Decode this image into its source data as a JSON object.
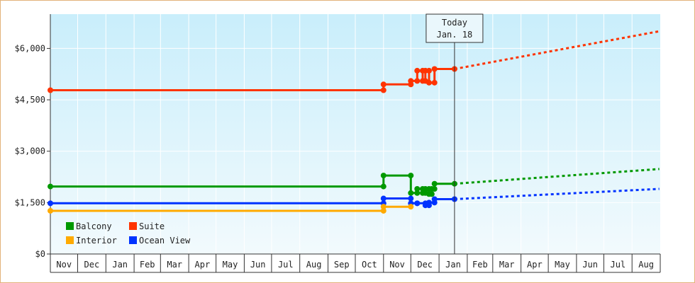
{
  "chart_data": {
    "type": "line",
    "ylim": [
      0,
      7000
    ],
    "y_ticks": [
      {
        "value": 0,
        "label": "$0"
      },
      {
        "value": 1500,
        "label": "$1,500"
      },
      {
        "value": 3000,
        "label": "$3,000"
      },
      {
        "value": 4500,
        "label": "$4,500"
      },
      {
        "value": 6000,
        "label": "$6,000"
      }
    ],
    "x_range": [
      "2023-11-01",
      "2025-08-31"
    ],
    "months": [
      {
        "label": "Nov",
        "date": "2023-11-01"
      },
      {
        "label": "Dec",
        "date": "2023-12-01"
      },
      {
        "label": "Jan",
        "date": "2024-01-01"
      },
      {
        "label": "Feb",
        "date": "2024-02-01"
      },
      {
        "label": "Mar",
        "date": "2024-03-01"
      },
      {
        "label": "Apr",
        "date": "2024-04-01"
      },
      {
        "label": "May",
        "date": "2024-05-01"
      },
      {
        "label": "Jun",
        "date": "2024-06-01"
      },
      {
        "label": "Jul",
        "date": "2024-07-01"
      },
      {
        "label": "Aug",
        "date": "2024-08-01"
      },
      {
        "label": "Sep",
        "date": "2024-09-01"
      },
      {
        "label": "Oct",
        "date": "2024-10-01"
      },
      {
        "label": "Nov",
        "date": "2024-11-01"
      },
      {
        "label": "Dec",
        "date": "2024-12-01"
      },
      {
        "label": "Jan",
        "date": "2025-01-01"
      },
      {
        "label": "Feb",
        "date": "2025-02-01"
      },
      {
        "label": "Mar",
        "date": "2025-03-01"
      },
      {
        "label": "Apr",
        "date": "2025-04-01"
      },
      {
        "label": "May",
        "date": "2025-05-01"
      },
      {
        "label": "Jun",
        "date": "2025-06-01"
      },
      {
        "label": "Jul",
        "date": "2025-07-01"
      },
      {
        "label": "Aug",
        "date": "2025-08-01"
      }
    ],
    "today": {
      "label": "Today",
      "date_label": "Jan. 18",
      "date": "2025-01-18"
    },
    "grid": true,
    "legend": "bottom-left",
    "colors": {
      "plot_top": "#c9eefb",
      "plot_bottom": "#f2fafd",
      "frame": "#e2b27a"
    },
    "series": [
      {
        "name": "Suite",
        "color": "#ff3300",
        "points": [
          {
            "date": "2023-11-01",
            "value": 4780
          },
          {
            "date": "2024-11-01",
            "value": 4780
          },
          {
            "date": "2024-11-01",
            "value": 4950
          },
          {
            "date": "2024-12-01",
            "value": 4950
          },
          {
            "date": "2024-12-01",
            "value": 5050
          },
          {
            "date": "2024-12-08",
            "value": 5050
          },
          {
            "date": "2024-12-08",
            "value": 5350
          },
          {
            "date": "2024-12-14",
            "value": 5350
          },
          {
            "date": "2024-12-14",
            "value": 5050
          },
          {
            "date": "2024-12-17",
            "value": 5050
          },
          {
            "date": "2024-12-17",
            "value": 5350
          },
          {
            "date": "2024-12-21",
            "value": 5350
          },
          {
            "date": "2024-12-21",
            "value": 5000
          },
          {
            "date": "2024-12-27",
            "value": 5000
          },
          {
            "date": "2024-12-27",
            "value": 5400
          },
          {
            "date": "2025-01-18",
            "value": 5400
          }
        ],
        "forecast": [
          {
            "date": "2025-01-18",
            "value": 5400
          },
          {
            "date": "2025-08-31",
            "value": 6500
          }
        ]
      },
      {
        "name": "Balcony",
        "color": "#009900",
        "points": [
          {
            "date": "2023-11-01",
            "value": 1970
          },
          {
            "date": "2024-11-01",
            "value": 1970
          },
          {
            "date": "2024-11-01",
            "value": 2290
          },
          {
            "date": "2024-12-01",
            "value": 2290
          },
          {
            "date": "2024-12-01",
            "value": 1780
          },
          {
            "date": "2024-12-08",
            "value": 1780
          },
          {
            "date": "2024-12-08",
            "value": 1900
          },
          {
            "date": "2024-12-14",
            "value": 1900
          },
          {
            "date": "2024-12-14",
            "value": 1780
          },
          {
            "date": "2024-12-17",
            "value": 1780
          },
          {
            "date": "2024-12-17",
            "value": 1900
          },
          {
            "date": "2024-12-21",
            "value": 1900
          },
          {
            "date": "2024-12-21",
            "value": 1750
          },
          {
            "date": "2024-12-24",
            "value": 1750
          },
          {
            "date": "2024-12-24",
            "value": 1900
          },
          {
            "date": "2024-12-27",
            "value": 1900
          },
          {
            "date": "2024-12-27",
            "value": 2050
          },
          {
            "date": "2025-01-18",
            "value": 2050
          }
        ],
        "forecast": [
          {
            "date": "2025-01-18",
            "value": 2050
          },
          {
            "date": "2025-08-31",
            "value": 2480
          }
        ]
      },
      {
        "name": "Ocean View",
        "color": "#0033ff",
        "points": [
          {
            "date": "2023-11-01",
            "value": 1480
          },
          {
            "date": "2024-11-01",
            "value": 1480
          },
          {
            "date": "2024-11-01",
            "value": 1620
          },
          {
            "date": "2024-12-01",
            "value": 1620
          },
          {
            "date": "2024-12-01",
            "value": 1480
          },
          {
            "date": "2024-12-08",
            "value": 1480
          },
          {
            "date": "2024-12-08",
            "value": 1480
          },
          {
            "date": "2024-12-17",
            "value": 1480
          },
          {
            "date": "2024-12-17",
            "value": 1420
          },
          {
            "date": "2024-12-21",
            "value": 1420
          },
          {
            "date": "2024-12-21",
            "value": 1500
          },
          {
            "date": "2024-12-27",
            "value": 1500
          },
          {
            "date": "2024-12-27",
            "value": 1600
          },
          {
            "date": "2025-01-18",
            "value": 1600
          }
        ],
        "forecast": [
          {
            "date": "2025-01-18",
            "value": 1600
          },
          {
            "date": "2025-08-31",
            "value": 1900
          }
        ]
      },
      {
        "name": "Interior",
        "color": "#ffaa00",
        "points": [
          {
            "date": "2023-11-01",
            "value": 1260
          },
          {
            "date": "2024-11-01",
            "value": 1260
          },
          {
            "date": "2024-11-01",
            "value": 1380
          },
          {
            "date": "2024-12-01",
            "value": 1380
          }
        ],
        "forecast": []
      }
    ],
    "legend_items": [
      {
        "name": "Balcony",
        "color": "#009900"
      },
      {
        "name": "Suite",
        "color": "#ff3300"
      },
      {
        "name": "Interior",
        "color": "#ffaa00"
      },
      {
        "name": "Ocean View",
        "color": "#0033ff"
      }
    ]
  }
}
